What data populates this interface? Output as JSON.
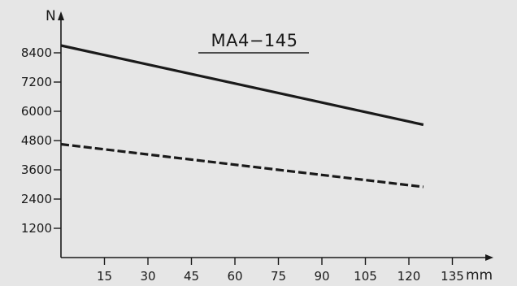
{
  "chart_data": {
    "type": "line",
    "title": "MA4−145",
    "xlabel": "mm",
    "ylabel": "N",
    "xlim": [
      0,
      140
    ],
    "ylim": [
      0,
      9600
    ],
    "x_ticks": [
      15,
      30,
      45,
      60,
      75,
      90,
      105,
      120,
      135
    ],
    "y_ticks": [
      1200,
      2400,
      3600,
      4800,
      6000,
      7200,
      8400
    ],
    "grid": false,
    "legend": "none",
    "series": [
      {
        "style": "solid",
        "x": [
          0,
          125
        ],
        "y": [
          8700,
          5450
        ]
      },
      {
        "style": "dashed",
        "x": [
          0,
          125
        ],
        "y": [
          4650,
          2900
        ]
      }
    ]
  },
  "colors": {
    "background": "#e6e6e6",
    "ink": "#1a1a1a"
  }
}
